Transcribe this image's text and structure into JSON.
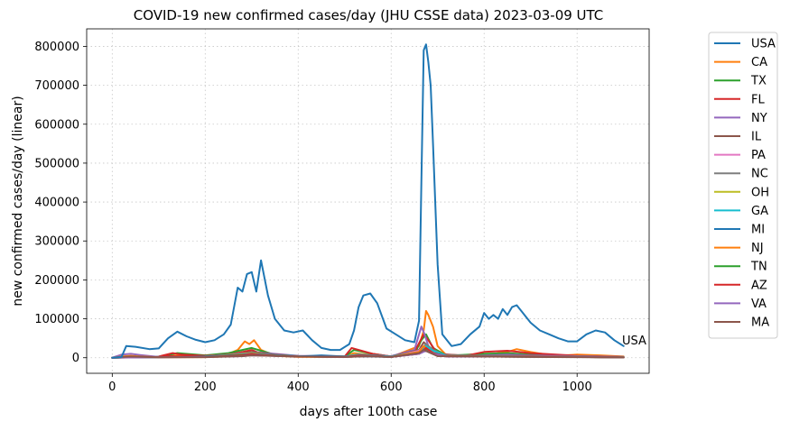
{
  "chart_data": {
    "type": "line",
    "title": "COVID-19 new confirmed cases/day (JHU CSSE data) 2023-03-09 UTC",
    "xlabel": "days after 100th case",
    "ylabel": "new confirmed cases/day (linear)",
    "xlim": [
      -55,
      1155
    ],
    "ylim": [
      -40000,
      845000
    ],
    "xticks": [
      0,
      200,
      400,
      600,
      800,
      1000
    ],
    "yticks": [
      0,
      100000,
      200000,
      300000,
      400000,
      500000,
      600000,
      700000,
      800000
    ],
    "grid": true,
    "legend_position": "outside-right",
    "end_label": "USA",
    "series": [
      {
        "name": "USA",
        "color": "#1f77b4",
        "x": [
          0,
          20,
          30,
          50,
          80,
          100,
          120,
          140,
          160,
          180,
          200,
          220,
          240,
          255,
          270,
          280,
          290,
          300,
          310,
          320,
          335,
          350,
          370,
          390,
          410,
          430,
          450,
          470,
          490,
          510,
          520,
          530,
          540,
          555,
          570,
          590,
          610,
          630,
          650,
          660,
          665,
          670,
          675,
          680,
          685,
          690,
          700,
          710,
          730,
          750,
          770,
          790,
          800,
          810,
          820,
          830,
          840,
          850,
          860,
          870,
          880,
          900,
          920,
          940,
          960,
          980,
          1000,
          1020,
          1040,
          1060,
          1080,
          1100
        ],
        "y": [
          0,
          2000,
          30000,
          28000,
          22000,
          24000,
          50000,
          67000,
          55000,
          46000,
          40000,
          45000,
          60000,
          85000,
          180000,
          170000,
          215000,
          220000,
          170000,
          250000,
          160000,
          100000,
          70000,
          65000,
          70000,
          45000,
          25000,
          20000,
          20000,
          35000,
          70000,
          130000,
          160000,
          165000,
          140000,
          75000,
          60000,
          45000,
          40000,
          95000,
          450000,
          790000,
          805000,
          760000,
          700000,
          550000,
          240000,
          60000,
          30000,
          35000,
          60000,
          80000,
          115000,
          100000,
          110000,
          100000,
          125000,
          110000,
          130000,
          135000,
          120000,
          90000,
          70000,
          60000,
          50000,
          42000,
          42000,
          60000,
          70000,
          65000,
          45000,
          30000
        ]
      },
      {
        "name": "CA",
        "color": "#ff7f0e",
        "x": [
          0,
          100,
          140,
          200,
          240,
          270,
          285,
          295,
          305,
          320,
          350,
          400,
          500,
          520,
          540,
          600,
          660,
          670,
          675,
          680,
          690,
          700,
          720,
          800,
          850,
          870,
          900,
          950,
          1000,
          1050,
          1100
        ],
        "y": [
          0,
          1000,
          6000,
          3000,
          5000,
          20000,
          42000,
          35000,
          45000,
          20000,
          5000,
          2000,
          2000,
          12000,
          9000,
          2000,
          30000,
          70000,
          120000,
          110000,
          80000,
          30000,
          5000,
          7000,
          15000,
          22000,
          15000,
          5000,
          8000,
          6000,
          3000
        ]
      },
      {
        "name": "TX",
        "color": "#2ca02c",
        "x": [
          0,
          100,
          140,
          200,
          250,
          280,
          300,
          320,
          350,
          400,
          500,
          520,
          540,
          560,
          600,
          650,
          665,
          675,
          690,
          720,
          800,
          850,
          900,
          1000,
          1100
        ],
        "y": [
          0,
          2000,
          12000,
          6000,
          12000,
          20000,
          25000,
          18000,
          8000,
          4000,
          3000,
          20000,
          15000,
          10000,
          3000,
          10000,
          45000,
          60000,
          25000,
          5000,
          10000,
          12000,
          8000,
          4000,
          2000
        ]
      },
      {
        "name": "FL",
        "color": "#d62728",
        "x": [
          0,
          100,
          130,
          150,
          200,
          250,
          280,
          300,
          320,
          400,
          500,
          515,
          530,
          560,
          600,
          650,
          670,
          680,
          700,
          760,
          800,
          850,
          900,
          1000,
          1100
        ],
        "y": [
          0,
          3000,
          12000,
          8000,
          5000,
          8000,
          15000,
          20000,
          10000,
          3000,
          3000,
          25000,
          20000,
          10000,
          3000,
          15000,
          60000,
          45000,
          10000,
          5000,
          15000,
          18000,
          12000,
          5000,
          2000
        ]
      },
      {
        "name": "NY",
        "color": "#9467bd",
        "x": [
          0,
          20,
          40,
          60,
          100,
          200,
          280,
          300,
          400,
          500,
          550,
          600,
          650,
          665,
          672,
          680,
          700,
          750,
          800,
          850,
          900,
          1000,
          1100
        ],
        "y": [
          0,
          8000,
          10000,
          7000,
          2000,
          2000,
          10000,
          15000,
          5000,
          3000,
          6000,
          4000,
          20000,
          80000,
          60000,
          30000,
          10000,
          4000,
          6000,
          8000,
          6000,
          4000,
          2000
        ]
      },
      {
        "name": "IL",
        "color": "#8c564b",
        "x": [
          0,
          100,
          200,
          280,
          300,
          350,
          400,
          500,
          550,
          600,
          660,
          670,
          680,
          700,
          800,
          900,
          1000,
          1100
        ],
        "y": [
          0,
          2000,
          4000,
          12000,
          15000,
          8000,
          4000,
          2000,
          5000,
          3000,
          20000,
          40000,
          30000,
          8000,
          5000,
          5000,
          3000,
          1500
        ]
      },
      {
        "name": "PA",
        "color": "#e377c2",
        "x": [
          0,
          100,
          200,
          280,
          300,
          350,
          400,
          500,
          550,
          600,
          660,
          670,
          680,
          700,
          800,
          900,
          1000,
          1100
        ],
        "y": [
          0,
          2000,
          3000,
          10000,
          12000,
          6000,
          3000,
          2000,
          4000,
          2000,
          18000,
          30000,
          25000,
          6000,
          4000,
          4000,
          3000,
          1000
        ]
      },
      {
        "name": "NC",
        "color": "#7f7f7f",
        "x": [
          0,
          100,
          200,
          280,
          300,
          400,
          500,
          530,
          560,
          600,
          660,
          675,
          690,
          720,
          800,
          900,
          1000,
          1100
        ],
        "y": [
          0,
          2000,
          3000,
          6000,
          8000,
          4000,
          3000,
          8000,
          6000,
          3000,
          15000,
          35000,
          20000,
          5000,
          5000,
          4000,
          3000,
          1000
        ]
      },
      {
        "name": "OH",
        "color": "#bcbd22",
        "x": [
          0,
          100,
          200,
          280,
          300,
          350,
          400,
          500,
          550,
          600,
          660,
          670,
          680,
          700,
          800,
          900,
          1000,
          1100
        ],
        "y": [
          0,
          1500,
          3000,
          9000,
          12000,
          5000,
          3000,
          2000,
          4000,
          2000,
          15000,
          25000,
          20000,
          5000,
          4000,
          3000,
          2000,
          1000
        ]
      },
      {
        "name": "GA",
        "color": "#17becf",
        "x": [
          0,
          100,
          200,
          280,
          300,
          400,
          500,
          530,
          560,
          600,
          660,
          675,
          690,
          720,
          800,
          900,
          1000,
          1100
        ],
        "y": [
          0,
          2000,
          3000,
          7000,
          9000,
          4000,
          3000,
          8000,
          6000,
          3000,
          14000,
          30000,
          18000,
          5000,
          4000,
          3000,
          2000,
          1000
        ]
      },
      {
        "name": "MI",
        "color": "#1f77b4",
        "x": [
          0,
          100,
          200,
          280,
          300,
          350,
          400,
          450,
          500,
          550,
          600,
          660,
          670,
          680,
          700,
          800,
          900,
          1000,
          1100
        ],
        "y": [
          0,
          1500,
          3000,
          8000,
          10000,
          5000,
          3000,
          6000,
          3000,
          3000,
          2000,
          12000,
          20000,
          15000,
          5000,
          3000,
          3000,
          2000,
          1000
        ]
      },
      {
        "name": "NJ",
        "color": "#ff7f0e",
        "x": [
          0,
          20,
          40,
          60,
          100,
          200,
          280,
          300,
          400,
          500,
          550,
          600,
          660,
          670,
          680,
          700,
          800,
          900,
          1000,
          1100
        ],
        "y": [
          0,
          3000,
          5000,
          3000,
          1000,
          1500,
          5000,
          7000,
          3000,
          2000,
          4000,
          2000,
          15000,
          30000,
          20000,
          5000,
          3000,
          3000,
          2000,
          1000
        ]
      },
      {
        "name": "TN",
        "color": "#2ca02c",
        "x": [
          0,
          100,
          200,
          280,
          300,
          400,
          500,
          540,
          600,
          660,
          675,
          690,
          720,
          800,
          900,
          1000,
          1100
        ],
        "y": [
          0,
          1500,
          2500,
          7000,
          8000,
          3000,
          2000,
          5000,
          2000,
          10000,
          20000,
          12000,
          3000,
          3000,
          2500,
          2000,
          800
        ]
      },
      {
        "name": "AZ",
        "color": "#d62728",
        "x": [
          0,
          100,
          120,
          200,
          280,
          300,
          320,
          400,
          500,
          530,
          560,
          600,
          660,
          675,
          690,
          720,
          800,
          900,
          1000,
          1100
        ],
        "y": [
          0,
          2000,
          4000,
          2000,
          6000,
          9000,
          7000,
          3000,
          2000,
          6000,
          5000,
          2000,
          10000,
          25000,
          12000,
          3000,
          3000,
          3000,
          2000,
          800
        ]
      },
      {
        "name": "VA",
        "color": "#9467bd",
        "x": [
          0,
          100,
          200,
          280,
          300,
          400,
          500,
          550,
          600,
          660,
          675,
          690,
          720,
          800,
          900,
          1000,
          1100
        ],
        "y": [
          0,
          1000,
          2000,
          4000,
          6000,
          3000,
          2000,
          4000,
          2000,
          10000,
          18000,
          10000,
          3000,
          3000,
          2500,
          2000,
          800
        ]
      },
      {
        "name": "MA",
        "color": "#8c564b",
        "x": [
          0,
          20,
          40,
          100,
          200,
          280,
          300,
          400,
          500,
          550,
          600,
          660,
          670,
          680,
          700,
          800,
          900,
          1000,
          1100
        ],
        "y": [
          0,
          2000,
          3000,
          1000,
          1500,
          4000,
          6000,
          3000,
          2000,
          4000,
          2000,
          12000,
          20000,
          15000,
          4000,
          3000,
          2000,
          1500,
          600
        ]
      }
    ]
  }
}
